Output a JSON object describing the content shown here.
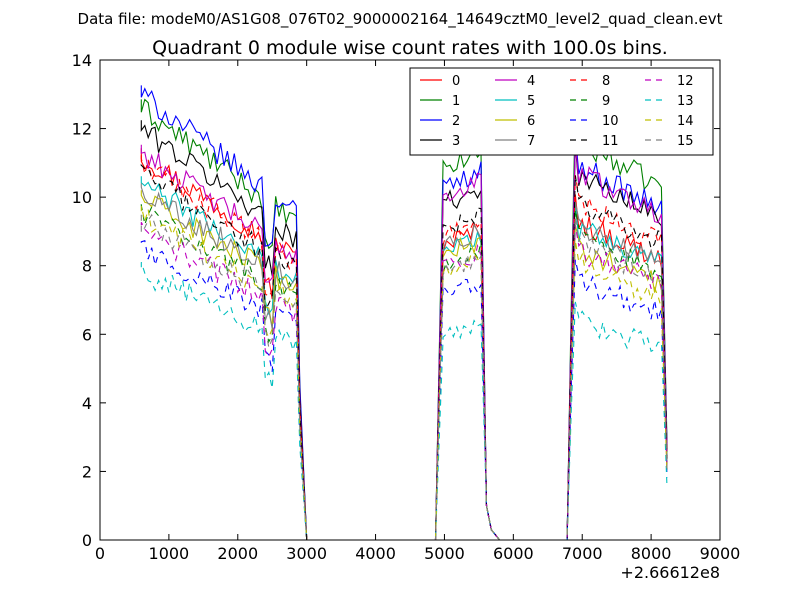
{
  "chart_data": {
    "type": "line",
    "suptitle": "Data file: modeM0/AS1G08_076T02_9000002164_14649cztM0_level2_quad_clean.evt",
    "title": "Quadrant 0 module wise count rates with 100.0s bins.",
    "xlabel": "",
    "ylabel": "",
    "x_offset_label": "+2.66612e8",
    "xlim": [
      0,
      9000
    ],
    "ylim": [
      0,
      14
    ],
    "x_ticks": [
      0,
      1000,
      2000,
      3000,
      4000,
      5000,
      6000,
      7000,
      8000,
      9000
    ],
    "y_ticks": [
      0,
      2,
      4,
      6,
      8,
      10,
      12,
      14
    ],
    "legend_position": "top-right",
    "legend_columns": 4,
    "segments": [
      {
        "x_start": 600,
        "x_end": 2900,
        "drop_to": 3000
      },
      {
        "x_start": 4900,
        "x_end": 5600,
        "drop_to": 5800
      },
      {
        "x_start": 6800,
        "x_end": 8200,
        "drop_to": 8200
      }
    ],
    "series": [
      {
        "name": "0",
        "color": "#ff0000",
        "dash": "solid",
        "levels": [
          11.2,
          8.8,
          9.0
        ]
      },
      {
        "name": "1",
        "color": "#008000",
        "dash": "solid",
        "levels": [
          12.6,
          11.0,
          11.3
        ]
      },
      {
        "name": "2",
        "color": "#0000ff",
        "dash": "solid",
        "levels": [
          13.0,
          10.5,
          10.6
        ]
      },
      {
        "name": "3",
        "color": "#000000",
        "dash": "solid",
        "levels": [
          12.0,
          10.0,
          10.3
        ]
      },
      {
        "name": "4",
        "color": "#bf00bf",
        "dash": "solid",
        "levels": [
          11.3,
          10.2,
          10.4
        ]
      },
      {
        "name": "5",
        "color": "#00bfbf",
        "dash": "solid",
        "levels": [
          10.4,
          8.6,
          8.8
        ]
      },
      {
        "name": "6",
        "color": "#bfbf00",
        "dash": "solid",
        "levels": [
          10.0,
          8.5,
          8.2
        ]
      },
      {
        "name": "7",
        "color": "#808080",
        "dash": "solid",
        "levels": [
          10.2,
          8.8,
          8.8
        ]
      },
      {
        "name": "8",
        "color": "#ff0000",
        "dash": "dashed",
        "levels": [
          11.0,
          9.0,
          9.5
        ]
      },
      {
        "name": "9",
        "color": "#008000",
        "dash": "dashed",
        "levels": [
          9.6,
          8.2,
          8.6
        ]
      },
      {
        "name": "10",
        "color": "#0000ff",
        "dash": "dashed",
        "levels": [
          8.5,
          7.3,
          7.3
        ]
      },
      {
        "name": "11",
        "color": "#000000",
        "dash": "dashed",
        "levels": [
          10.7,
          9.2,
          9.5
        ]
      },
      {
        "name": "12",
        "color": "#bf00bf",
        "dash": "dashed",
        "levels": [
          9.0,
          8.2,
          8.2
        ]
      },
      {
        "name": "13",
        "color": "#00bfbf",
        "dash": "dashed",
        "levels": [
          7.8,
          6.0,
          6.2
        ]
      },
      {
        "name": "14",
        "color": "#bfbf00",
        "dash": "dashed",
        "levels": [
          9.4,
          8.0,
          7.8
        ]
      },
      {
        "name": "15",
        "color": "#808080",
        "dash": "dashed",
        "levels": [
          9.3,
          8.0,
          8.4
        ]
      }
    ]
  }
}
